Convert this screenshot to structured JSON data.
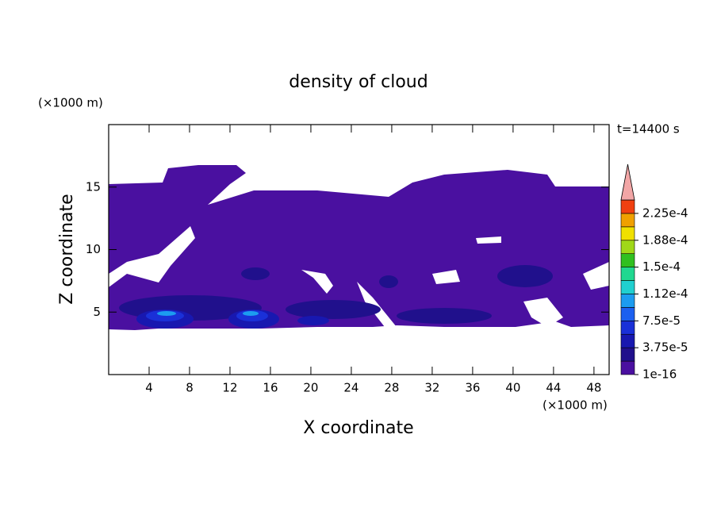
{
  "chart_data": {
    "type": "contour",
    "title": "density of cloud",
    "x_label": "X coordinate",
    "y_label": "Z coordinate",
    "x_unit": "(×1000 m)",
    "y_unit": "(×1000 m)",
    "annotation": "t=14400 s",
    "xlim": [
      0,
      49.5
    ],
    "ylim": [
      0,
      20
    ],
    "xticks": [
      4,
      8,
      12,
      16,
      20,
      24,
      28,
      32,
      36,
      40,
      44,
      48
    ],
    "yticks": [
      5,
      10,
      15
    ],
    "colorbar": {
      "colors": [
        "#4a10a0",
        "#20108c",
        "#1818b0",
        "#1a30d8",
        "#1c60f0",
        "#1c9cf0",
        "#20d0d0",
        "#20d890",
        "#30c020",
        "#a0d818",
        "#f0e000",
        "#f0a000",
        "#f04010"
      ],
      "extend_color": "#f2a6a6",
      "lim": [
        1e-16,
        0.00024375
      ],
      "ticks": [
        1e-16,
        {
          "value": 3.75e-05,
          "label": "3.75e-5"
        },
        {
          "value": 7.5e-05,
          "label": "7.5e-5"
        },
        {
          "value": 0.0001125,
          "label": "1.12e-4"
        },
        {
          "value": 0.00015,
          "label": "1.5e-4"
        },
        {
          "value": 0.0001875,
          "label": "1.88e-4"
        },
        {
          "value": 0.000225,
          "label": "2.25e-4"
        }
      ]
    }
  }
}
